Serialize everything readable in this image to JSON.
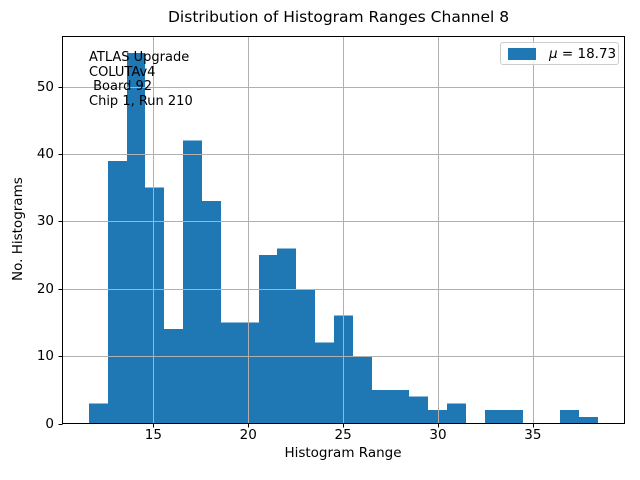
{
  "figure": {
    "title": "Distribution of Histogram Ranges Channel 8",
    "xlabel": "Histogram Range",
    "ylabel": "No. Histograms",
    "annotation": {
      "lines": [
        "ATLAS Upgrade",
        "COLUTAv4",
        " Board 92",
        "Chip 1, Run 210"
      ]
    },
    "legend": {
      "symbol": "μ",
      "rest": " = 18.73",
      "swatch_color": "#1f77b4"
    }
  },
  "chart_data": {
    "type": "bar",
    "subtype": "histogram",
    "title": "Distribution of Histogram Ranges Channel 8",
    "xlabel": "Histogram Range",
    "ylabel": "No. Histograms",
    "bin_start": 11.6,
    "bin_width": 0.994,
    "counts": [
      3,
      39,
      55,
      35,
      14,
      42,
      33,
      15,
      15,
      25,
      26,
      20,
      12,
      16,
      10,
      5,
      5,
      4,
      2,
      3,
      0,
      2,
      2,
      0,
      0,
      2,
      1
    ],
    "x_ticks": [
      15,
      20,
      25,
      30,
      35
    ],
    "y_ticks": [
      0,
      10,
      20,
      30,
      40,
      50
    ],
    "xlim": [
      10.21,
      39.83
    ],
    "ylim": [
      0,
      57.45
    ],
    "bar_color": "#1f77b4",
    "grid": true,
    "grid_color": "#b0b0b0",
    "spine_color": "#000000",
    "legend_position": "upper right",
    "legend_label": "μ = 18.73",
    "mean": 18.73,
    "annotation_lines": [
      "ATLAS Upgrade",
      "COLUTAv4",
      " Board 92",
      "Chip 1, Run 210"
    ]
  }
}
